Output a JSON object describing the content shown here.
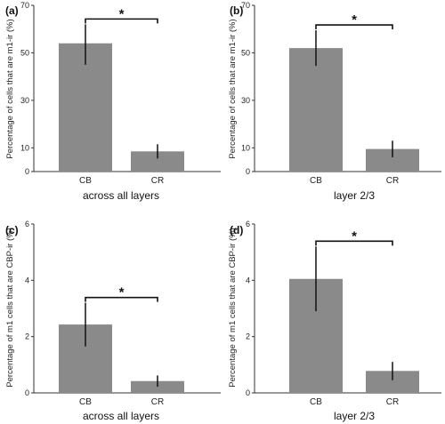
{
  "chart_data": [
    {
      "type": "bar",
      "panel_label": "(a)",
      "categories": [
        "CB",
        "CR"
      ],
      "values": [
        54,
        8.5
      ],
      "errors": [
        [
          45,
          62
        ],
        [
          5.5,
          11.5
        ]
      ],
      "ylim": [
        0,
        70
      ],
      "yticks": [
        0,
        10,
        30,
        50,
        70
      ],
      "ytick_labels": [
        "0",
        "10",
        "30",
        "50",
        "70"
      ],
      "xlabel": "across all layers",
      "ylabel": "Percentage of cells that are m1-ir (%)",
      "significance": "*",
      "grid": false
    },
    {
      "type": "bar",
      "panel_label": "(b)",
      "categories": [
        "CB",
        "CR"
      ],
      "values": [
        52,
        9.5
      ],
      "errors": [
        [
          44.5,
          59.5
        ],
        [
          6,
          13
        ]
      ],
      "ylim": [
        0,
        70
      ],
      "yticks": [
        0,
        10,
        30,
        50,
        70
      ],
      "ytick_labels": [
        "0",
        "10",
        "30",
        "50",
        "70"
      ],
      "xlabel": "layer 2/3",
      "ylabel": "Percentage of cells that are m1-ir (%)",
      "significance": "*",
      "grid": false
    },
    {
      "type": "bar",
      "panel_label": "(c)",
      "categories": [
        "CB",
        "CR"
      ],
      "values": [
        2.43,
        0.42
      ],
      "errors": [
        [
          1.65,
          3.2
        ],
        [
          0.22,
          0.62
        ]
      ],
      "ylim": [
        0,
        6
      ],
      "yticks": [
        0,
        2,
        4,
        6
      ],
      "ytick_labels": [
        "0",
        "2",
        "4",
        "6"
      ],
      "xlabel": "across all layers",
      "ylabel": "Percentage of m1 cells that are CBP-ir (%)",
      "significance": "*",
      "grid": false
    },
    {
      "type": "bar",
      "panel_label": "(d)",
      "categories": [
        "CB",
        "CR"
      ],
      "values": [
        4.05,
        0.78
      ],
      "errors": [
        [
          2.9,
          5.2
        ],
        [
          0.45,
          1.1
        ]
      ],
      "ylim": [
        0,
        6
      ],
      "yticks": [
        0,
        2,
        4,
        6
      ],
      "ytick_labels": [
        "0",
        "2",
        "4",
        "6"
      ],
      "xlabel": "layer 2/3",
      "ylabel": "Percentage of m1 cells that are CBP-ir (%)",
      "significance": "*",
      "grid": false
    }
  ],
  "colors": {
    "bar": "#8a8a8a",
    "error_bar": "#111111",
    "axis": "#333333"
  }
}
